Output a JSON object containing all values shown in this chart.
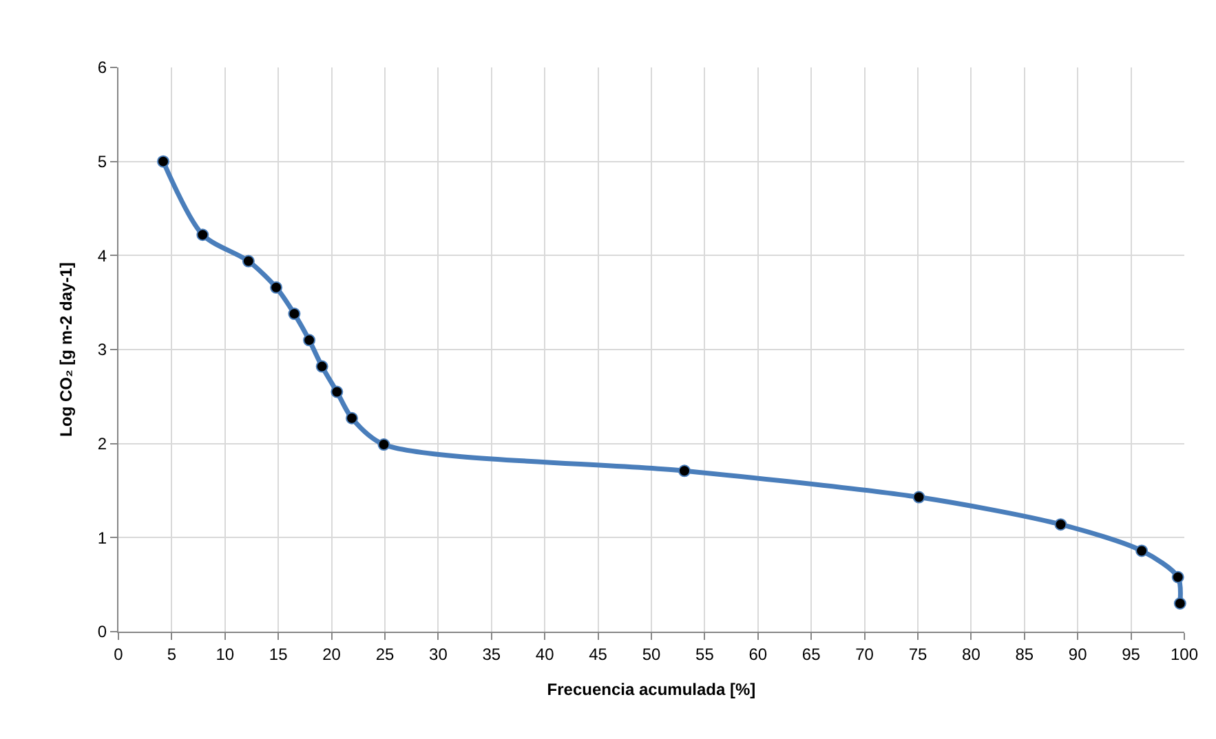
{
  "chart_data": {
    "type": "line",
    "xlabel": "Frecuencia acumulada [%]",
    "ylabel": "Log CO₂ [g m-2 day-1]",
    "x": [
      4.2,
      7.9,
      12.2,
      14.8,
      16.5,
      17.9,
      19.1,
      20.5,
      21.9,
      24.9,
      53.1,
      75.1,
      88.4,
      96.0,
      99.4,
      99.6
    ],
    "series": [
      {
        "color": "#4a7ebb",
        "values": [
          5.0,
          4.22,
          3.94,
          3.66,
          3.38,
          3.1,
          2.82,
          2.55,
          2.27,
          1.99,
          1.71,
          1.43,
          1.14,
          0.86,
          0.58,
          0.3
        ]
      }
    ],
    "xlim": [
      0,
      100
    ],
    "xticks": [
      0,
      5,
      10,
      15,
      20,
      25,
      30,
      35,
      40,
      45,
      50,
      55,
      60,
      65,
      70,
      75,
      80,
      85,
      90,
      95,
      100
    ],
    "ylim": [
      0,
      6
    ],
    "yticks": [
      0,
      1,
      2,
      3,
      4,
      5,
      6
    ],
    "grid": true,
    "legend": false,
    "marker": "circle",
    "line_style": "solid"
  }
}
